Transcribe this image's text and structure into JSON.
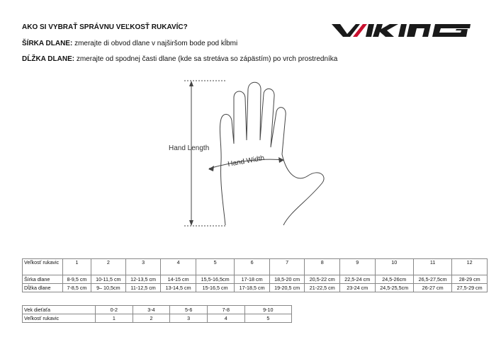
{
  "title": "AKO SI VYBRAŤ SPRÁVNU VEĽKOSŤ RUKAVÍC?",
  "width_label": "ŠÍRKA DLANE:",
  "width_text": "zmerajte di obvod dlane v najširšom bode pod kĺbmi",
  "length_label": "DĹŽKA DLANE:",
  "length_text": "zmerajte od spodnej časti dlane (kde sa stretáva so zápästím) po vrch prostredníka",
  "logo": "VIKING",
  "illustration": {
    "length_label": "Hand Length",
    "width_label": "Hand Width"
  },
  "size_table": {
    "header_label": "Veľkosť rukavic",
    "sizes": [
      "1",
      "2",
      "3",
      "4",
      "5",
      "6",
      "7",
      "8",
      "9",
      "10",
      "11",
      "12"
    ],
    "rows": [
      {
        "label": "Šírka dlane",
        "values": [
          "8-9,5 cm",
          "10-11,5 cm",
          "12-13,5 cm",
          "14-15 cm",
          "15,5-16,5cm",
          "17-18 cm",
          "18,5-20 cm",
          "20,5-22 cm",
          "22,5-24 cm",
          "24,5-26cm",
          "26,5-27,5cm",
          "28-29 cm"
        ]
      },
      {
        "label": "Dĺžka dlane",
        "values": [
          "7-8,5 cm",
          "9– 10,5cm",
          "11-12,5 cm",
          "13-14,5 cm",
          "15-16,5 cm",
          "17-18,5 cm",
          "19-20,5 cm",
          "21-22,5 cm",
          "23-24 cm",
          "24,5-25,5cm",
          "26-27 cm",
          "27,5-29 cm"
        ]
      }
    ]
  },
  "age_table": {
    "rows": [
      {
        "label": "Vek dieťaťa",
        "values": [
          "0-2",
          "3-4",
          "5-6",
          "7-8",
          "9-10"
        ]
      },
      {
        "label": "Veľkosť rukavic",
        "values": [
          "1",
          "2",
          "3",
          "4",
          "5"
        ]
      }
    ]
  },
  "colors": {
    "logo_red": "#c8102e",
    "logo_dark": "#1a1a1a"
  }
}
